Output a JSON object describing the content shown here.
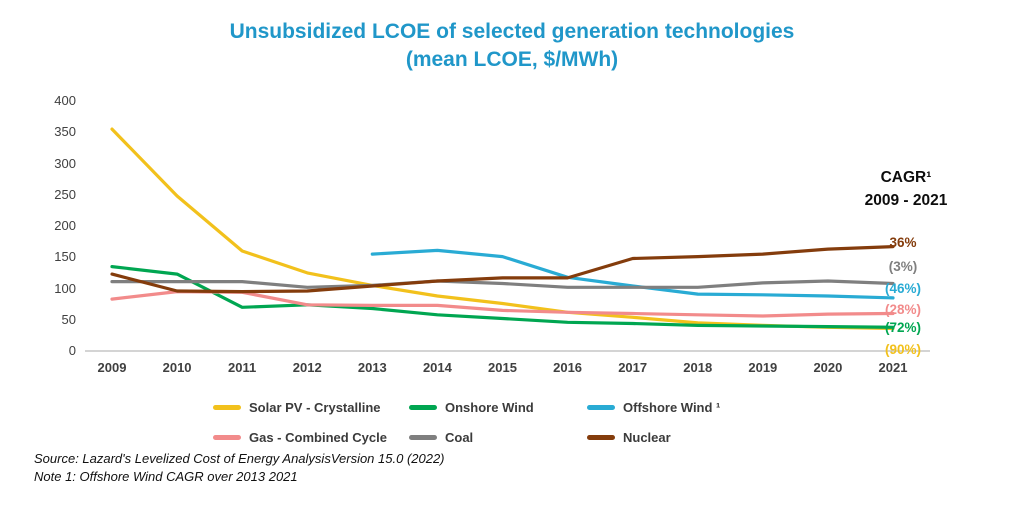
{
  "title": {
    "line1": "Unsubsidized LCOE of selected generation technologies",
    "line2": "(mean LCOE, $/MWh)"
  },
  "colors": {
    "title": "#2097C9",
    "axis_text": "#404040",
    "axis_line": "#C6C6C6",
    "legend_text": "#3B3B3B",
    "source_text": "#111111"
  },
  "cagr": {
    "header_line1": "CAGR¹",
    "header_line2": "2009 - 2021",
    "labels": [
      {
        "text": "36%",
        "series": "Nuclear",
        "color": "#843C0C"
      },
      {
        "text": "(3%)",
        "series": "Coal",
        "color": "#7F7F7F"
      },
      {
        "text": "(46%)",
        "series": "Offshore Wind",
        "color": "#29ABD4"
      },
      {
        "text": "(28%)",
        "series": "Gas - Combined Cycle",
        "color": "#F28B8B"
      },
      {
        "text": "(72%)",
        "series": "Onshore Wind",
        "color": "#00A651"
      },
      {
        "text": "(90%)",
        "series": "Solar PV - Crystalline",
        "color": "#F2C11C"
      }
    ]
  },
  "source": {
    "line1": "Source: Lazard's Levelized Cost of Energy AnalysisVersion 15.0 (2022)",
    "line2": "Note 1: Offshore Wind CAGR over 2013 2021"
  },
  "chart_data": {
    "type": "line",
    "title": "Unsubsidized LCOE of selected generation technologies (mean LCOE, $/MWh)",
    "x": [
      2009,
      2010,
      2011,
      2012,
      2013,
      2014,
      2015,
      2016,
      2017,
      2018,
      2019,
      2020,
      2021
    ],
    "ylim": [
      0,
      400
    ],
    "y_ticks": [
      0,
      50,
      100,
      150,
      200,
      250,
      300,
      350,
      400
    ],
    "grid": false,
    "legend_position": "bottom",
    "series": [
      {
        "name": "Solar PV - Crystalline",
        "color": "#F2C11C",
        "cagr": "(90%)",
        "values": [
          355,
          248,
          160,
          125,
          105,
          88,
          76,
          62,
          54,
          45,
          41,
          38,
          36
        ]
      },
      {
        "name": "Onshore Wind",
        "color": "#00A651",
        "cagr": "(72%)",
        "values": [
          135,
          123,
          70,
          74,
          68,
          58,
          52,
          46,
          44,
          41,
          40,
          39,
          38
        ]
      },
      {
        "name": "Offshore Wind ¹",
        "color": "#29ABD4",
        "cagr": "(46%)",
        "values": [
          null,
          null,
          null,
          null,
          155,
          161,
          151,
          118,
          104,
          91,
          90,
          88,
          85
        ]
      },
      {
        "name": "Gas - Combined Cycle",
        "color": "#F28B8B",
        "cagr": "(28%)",
        "values": [
          83,
          95,
          94,
          74,
          73,
          73,
          65,
          62,
          60,
          58,
          56,
          59,
          60
        ]
      },
      {
        "name": "Coal",
        "color": "#7F7F7F",
        "cagr": "(3%)",
        "values": [
          111,
          111,
          111,
          102,
          105,
          112,
          108,
          102,
          102,
          102,
          109,
          112,
          108
        ]
      },
      {
        "name": "Nuclear",
        "color": "#843C0C",
        "cagr": "36%",
        "values": [
          123,
          96,
          95,
          96,
          104,
          112,
          117,
          117,
          148,
          151,
          155,
          163,
          167
        ]
      }
    ]
  }
}
